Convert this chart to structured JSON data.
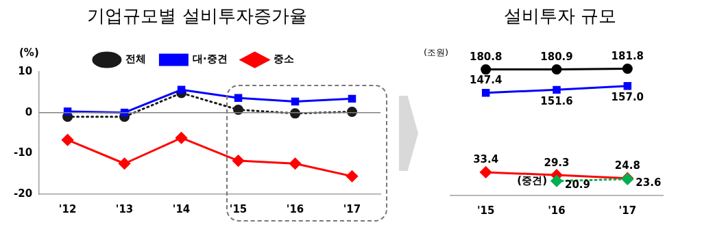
{
  "chart_data": [
    {
      "type": "line",
      "title": "기업규모별 설비투자증가율",
      "ylabel": "(%)",
      "categories": [
        "'12",
        "'13",
        "'14",
        "'15",
        "'16",
        "'17"
      ],
      "ylim": [
        -20,
        10
      ],
      "yticks": [
        -20,
        -10,
        0,
        10
      ],
      "legend": "top",
      "ref_lines": [
        {
          "axis": "y",
          "value": 0,
          "color": "#808080"
        }
      ],
      "series": [
        {
          "name": "전체",
          "color": "#1a1a1a",
          "marker": "circle",
          "line_style": "dotted",
          "values": [
            -1.0,
            -1.0,
            4.8,
            0.7,
            -0.2,
            0.2
          ]
        },
        {
          "name": "대·중견",
          "color": "#0000ff",
          "marker": "square",
          "line_style": "solid",
          "values": [
            0.3,
            0.0,
            5.6,
            3.6,
            2.7,
            3.4
          ]
        },
        {
          "name": "중소",
          "color": "#ff0000",
          "marker": "diamond",
          "line_style": "solid",
          "values": [
            -6.7,
            -12.5,
            -6.2,
            -11.8,
            -12.5,
            -15.6
          ]
        }
      ]
    },
    {
      "type": "line",
      "title": "설비투자 규모",
      "ylabel": "(조원)",
      "categories": [
        "'15",
        "'16",
        "'17"
      ],
      "tick_labels": "x",
      "series": [
        {
          "color": "#000000",
          "marker": "circle",
          "line_style": "solid",
          "values": [
            180.8,
            180.9,
            181.8
          ],
          "value_labels": [
            "180.8",
            "180.9",
            "181.8"
          ]
        },
        {
          "color": "#0000ff",
          "marker": "square",
          "line_style": "solid",
          "values": [
            147.4,
            151.6,
            157.0
          ],
          "value_labels": [
            "147.4",
            "151.6",
            "157.0"
          ]
        },
        {
          "color": "#ff0000",
          "marker": "diamond",
          "line_style": "solid",
          "values": [
            33.4,
            29.3,
            24.8
          ],
          "value_labels": [
            "33.4",
            "29.3",
            "24.8"
          ]
        },
        {
          "name": "(중견)",
          "color": "#00b050",
          "marker": "diamond",
          "line_style": "dotted",
          "values": [
            null,
            20.9,
            23.6
          ],
          "value_labels": [
            null,
            "20.9",
            "23.6"
          ]
        }
      ]
    }
  ]
}
